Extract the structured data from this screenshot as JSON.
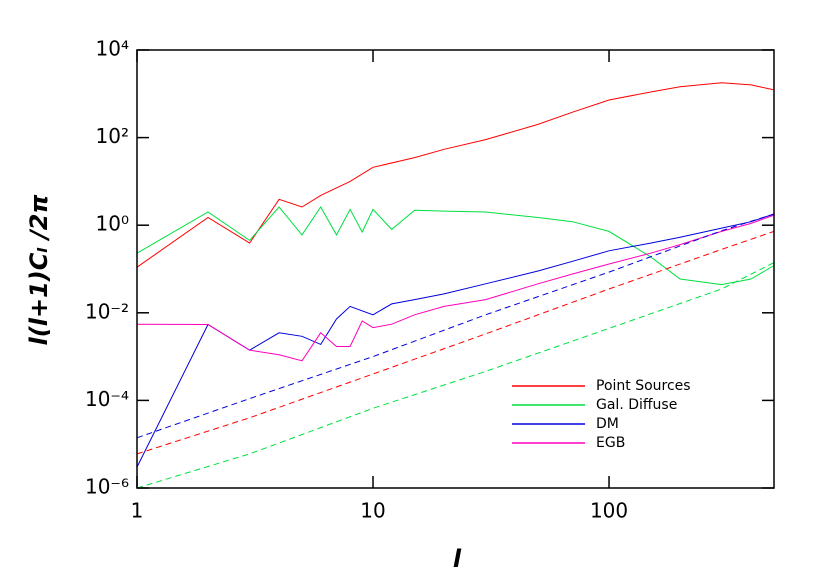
{
  "chart_data": {
    "type": "line",
    "x_label": "l",
    "y_label": "l(l+1)Cₗ /2π",
    "log_x": true,
    "log_y": true,
    "legend": "lower right",
    "xlim": [
      1,
      500
    ],
    "xticks": [
      1,
      10,
      100
    ],
    "ylim": [
      1e-06,
      10000
    ],
    "yticks": [
      {
        "value": 1e-06,
        "label": "10⁻⁶"
      },
      {
        "value": 0.0001,
        "label": "10⁻⁴"
      },
      {
        "value": 0.01,
        "label": "10⁻²"
      },
      {
        "value": 1,
        "label": "10⁰"
      },
      {
        "value": 100,
        "label": "10²"
      },
      {
        "value": 10000,
        "label": "10⁴"
      }
    ],
    "series": [
      {
        "name": "Point Sources",
        "color": "#ff0000",
        "x": [
          1,
          2,
          3,
          4,
          5,
          6,
          8,
          10,
          15,
          20,
          30,
          50,
          70,
          100,
          150,
          200,
          300,
          400,
          500
        ],
        "values": [
          0.11,
          1.5,
          0.39,
          3.9,
          2.6,
          4.8,
          10,
          21,
          35,
          54,
          90,
          200,
          380,
          720,
          1100,
          1450,
          1780,
          1600,
          1230
        ]
      },
      {
        "name": "Gal. Diffuse",
        "color": "#00e040",
        "x": [
          1,
          2,
          3,
          4,
          5,
          6,
          7,
          8,
          9,
          10,
          12,
          15,
          20,
          30,
          50,
          70,
          100,
          150,
          200,
          300,
          400,
          500
        ],
        "values": [
          0.23,
          2.0,
          0.45,
          2.6,
          0.6,
          2.6,
          0.6,
          2.3,
          0.7,
          2.3,
          0.8,
          2.2,
          2.1,
          2.0,
          1.5,
          1.2,
          0.72,
          0.19,
          0.059,
          0.044,
          0.059,
          0.12
        ]
      },
      {
        "name": "DM",
        "color": "#0000dd",
        "x": [
          1,
          2,
          3,
          4,
          5,
          6,
          7,
          8,
          10,
          12,
          15,
          20,
          30,
          50,
          70,
          100,
          150,
          200,
          300,
          400,
          500
        ],
        "values": [
          3e-06,
          0.0054,
          0.0014,
          0.0035,
          0.0029,
          0.0019,
          0.0072,
          0.014,
          0.009,
          0.016,
          0.02,
          0.027,
          0.046,
          0.09,
          0.15,
          0.26,
          0.39,
          0.53,
          0.86,
          1.2,
          1.8
        ]
      },
      {
        "name": "EGB",
        "color": "#ff00bb",
        "x": [
          1,
          2,
          3,
          4,
          5,
          6,
          7,
          8,
          9,
          10,
          12,
          15,
          20,
          30,
          50,
          70,
          100,
          150,
          200,
          300,
          400,
          500
        ],
        "values": [
          0.0055,
          0.0054,
          0.0014,
          0.0011,
          0.0008,
          0.0035,
          0.0017,
          0.0017,
          0.0065,
          0.0046,
          0.0055,
          0.009,
          0.014,
          0.02,
          0.046,
          0.077,
          0.13,
          0.23,
          0.36,
          0.72,
          1.1,
          1.7
        ]
      },
      {
        "color": "#0000dd",
        "dash": true,
        "x": [
          1,
          3,
          10,
          30,
          100,
          300,
          500
        ],
        "values": [
          1.4e-05,
          0.00011,
          0.001,
          0.009,
          0.085,
          0.75,
          1.8
        ]
      },
      {
        "color": "#ff0000",
        "dash": true,
        "x": [
          1,
          3,
          10,
          30,
          100,
          300,
          500
        ],
        "values": [
          6e-06,
          4e-05,
          0.0004,
          0.0033,
          0.035,
          0.28,
          0.72
        ]
      },
      {
        "color": "#00e040",
        "dash": true,
        "x": [
          1,
          3,
          10,
          30,
          100,
          300,
          500
        ],
        "values": [
          1e-06,
          6e-06,
          6.6e-05,
          0.00046,
          0.0044,
          0.035,
          0.14
        ]
      }
    ]
  }
}
